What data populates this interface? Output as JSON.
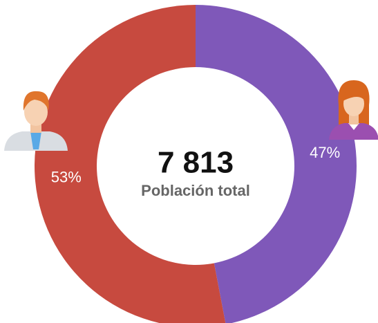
{
  "chart_data": {
    "type": "donut",
    "values": [
      47,
      53
    ],
    "value_labels": [
      "47%",
      "53%"
    ],
    "colors": [
      "#7f58b9",
      "#c74a3f"
    ],
    "total": {
      "value": 7813,
      "label": "7 813"
    },
    "total_caption": "Población total"
  }
}
